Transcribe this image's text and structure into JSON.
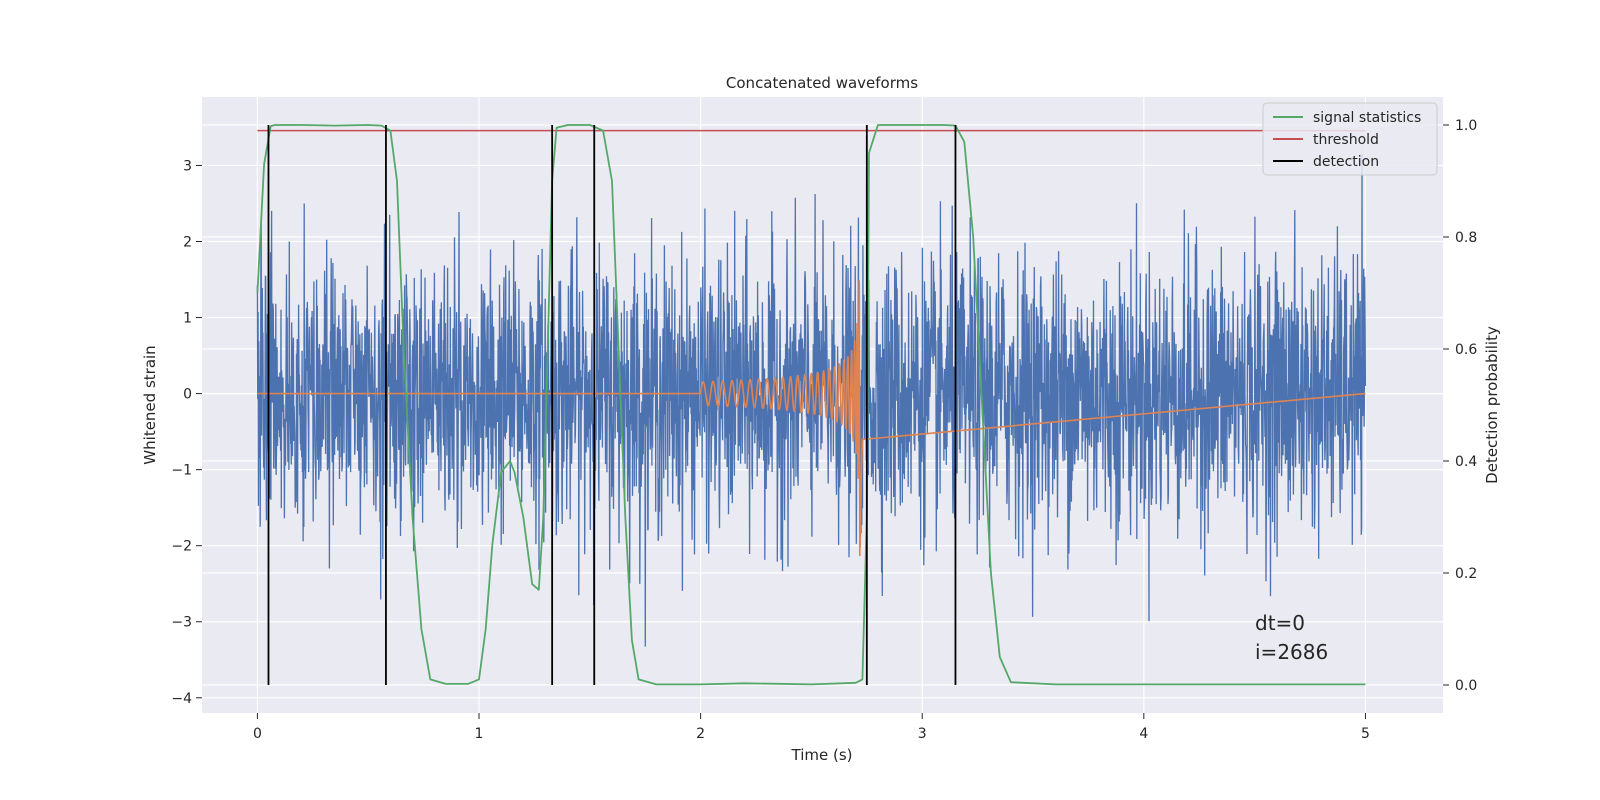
{
  "chart_data": {
    "type": "line",
    "title": "Concatenated waveforms",
    "xlabel": "Time (s)",
    "ylabel": "Whitened strain",
    "y2label": "Detection probability",
    "xlim": [
      -0.25,
      5.35
    ],
    "ylim": [
      -4.2,
      3.9
    ],
    "y2lim": [
      -0.05,
      1.05
    ],
    "xticks": [
      0,
      1,
      2,
      3,
      4,
      5
    ],
    "yticks": [
      -4,
      -3,
      -2,
      -1,
      0,
      1,
      2,
      3
    ],
    "y2ticks": [
      0.0,
      0.2,
      0.4,
      0.6,
      0.8,
      1.0
    ],
    "grid": true,
    "legend_position": "top-right",
    "colors": {
      "noise": "#4c72b0",
      "injected": "#dd8452",
      "signal_statistics": "#55a868",
      "threshold": "#c44e52",
      "detection": "#000000",
      "background": "#eaeaf2"
    },
    "series": [
      {
        "name": "signal statistics",
        "axis": "right",
        "x": [
          0.0,
          0.03,
          0.06,
          0.08,
          0.12,
          0.2,
          0.35,
          0.5,
          0.56,
          0.6,
          0.63,
          0.66,
          0.7,
          0.74,
          0.78,
          0.85,
          0.95,
          1.0,
          1.03,
          1.06,
          1.1,
          1.14,
          1.16,
          1.2,
          1.24,
          1.27,
          1.29,
          1.31,
          1.33,
          1.35,
          1.4,
          1.5,
          1.56,
          1.6,
          1.63,
          1.66,
          1.69,
          1.72,
          1.8,
          2.0,
          2.2,
          2.5,
          2.7,
          2.73,
          2.75,
          2.76,
          2.8,
          3.0,
          3.1,
          3.15,
          3.19,
          3.23,
          3.27,
          3.31,
          3.35,
          3.4,
          3.6,
          4.0,
          4.5,
          5.0
        ],
        "y": [
          0.7,
          0.93,
          0.998,
          1.0,
          1.0,
          1.0,
          0.999,
          1.0,
          0.999,
          0.99,
          0.9,
          0.6,
          0.3,
          0.1,
          0.01,
          0.002,
          0.002,
          0.01,
          0.1,
          0.25,
          0.38,
          0.4,
          0.38,
          0.3,
          0.18,
          0.17,
          0.3,
          0.6,
          0.9,
          0.995,
          1.0,
          1.0,
          0.99,
          0.9,
          0.6,
          0.3,
          0.08,
          0.01,
          0.001,
          0.001,
          0.003,
          0.001,
          0.004,
          0.01,
          0.3,
          0.95,
          1.0,
          1.0,
          1.0,
          0.999,
          0.97,
          0.8,
          0.5,
          0.2,
          0.05,
          0.005,
          0.001,
          0.001,
          0.001,
          0.001
        ]
      },
      {
        "name": "threshold",
        "axis": "right",
        "x": [
          0.0,
          5.0
        ],
        "y": [
          0.99,
          0.99
        ]
      },
      {
        "name": "detection",
        "axis": "right",
        "type": "vlines",
        "x": [
          0.05,
          0.58,
          1.33,
          1.52,
          2.75,
          3.15
        ],
        "ymin": 0.0,
        "ymax": 1.0
      },
      {
        "axis": "left",
        "type": "noise",
        "x_range": [
          0.0,
          5.0
        ],
        "typical_peak": 2.3,
        "max": 3.5,
        "min": -3.9
      },
      {
        "axis": "left",
        "type": "chirp",
        "x_range": [
          2.0,
          2.73
        ],
        "merger_time": 2.72,
        "peak_amplitude": 2.15
      }
    ],
    "annotations": [
      "dt=0",
      "i=2686"
    ]
  }
}
